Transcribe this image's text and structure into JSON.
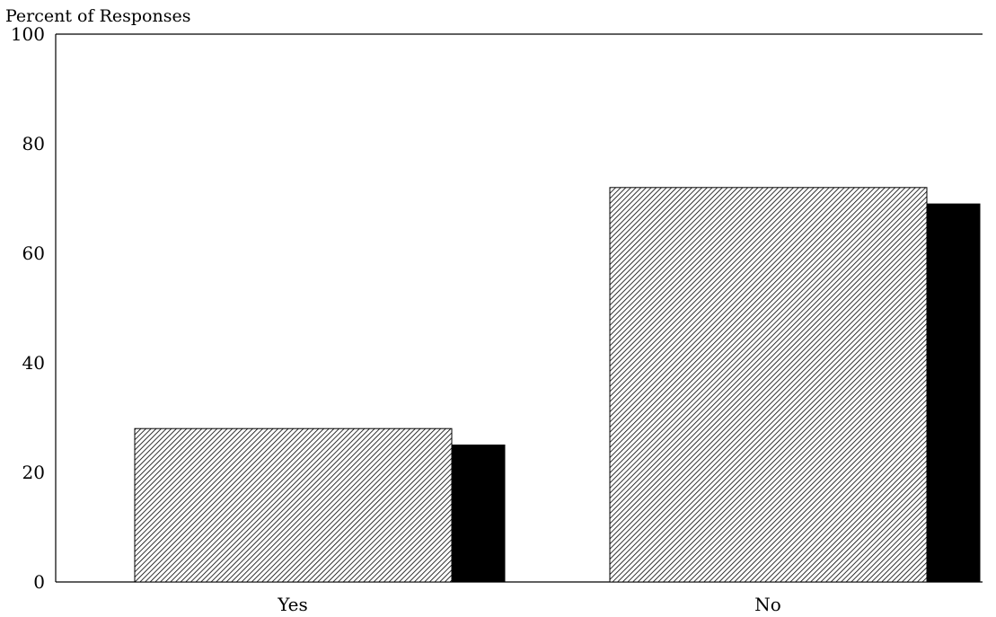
{
  "chart_data": {
    "type": "bar",
    "ylabel": "Percent of Responses",
    "xlabel": "",
    "ylim": [
      0,
      100
    ],
    "yticks": [
      0,
      20,
      40,
      60,
      80,
      100
    ],
    "categories": [
      "Yes",
      "No"
    ],
    "series": [
      {
        "values": [
          28,
          72
        ],
        "pattern": "diagonal-hatch",
        "color": "#000000"
      },
      {
        "values": [
          25,
          69
        ],
        "pattern": "solid",
        "color": "#000000"
      }
    ],
    "grid": false,
    "legend": "none"
  }
}
